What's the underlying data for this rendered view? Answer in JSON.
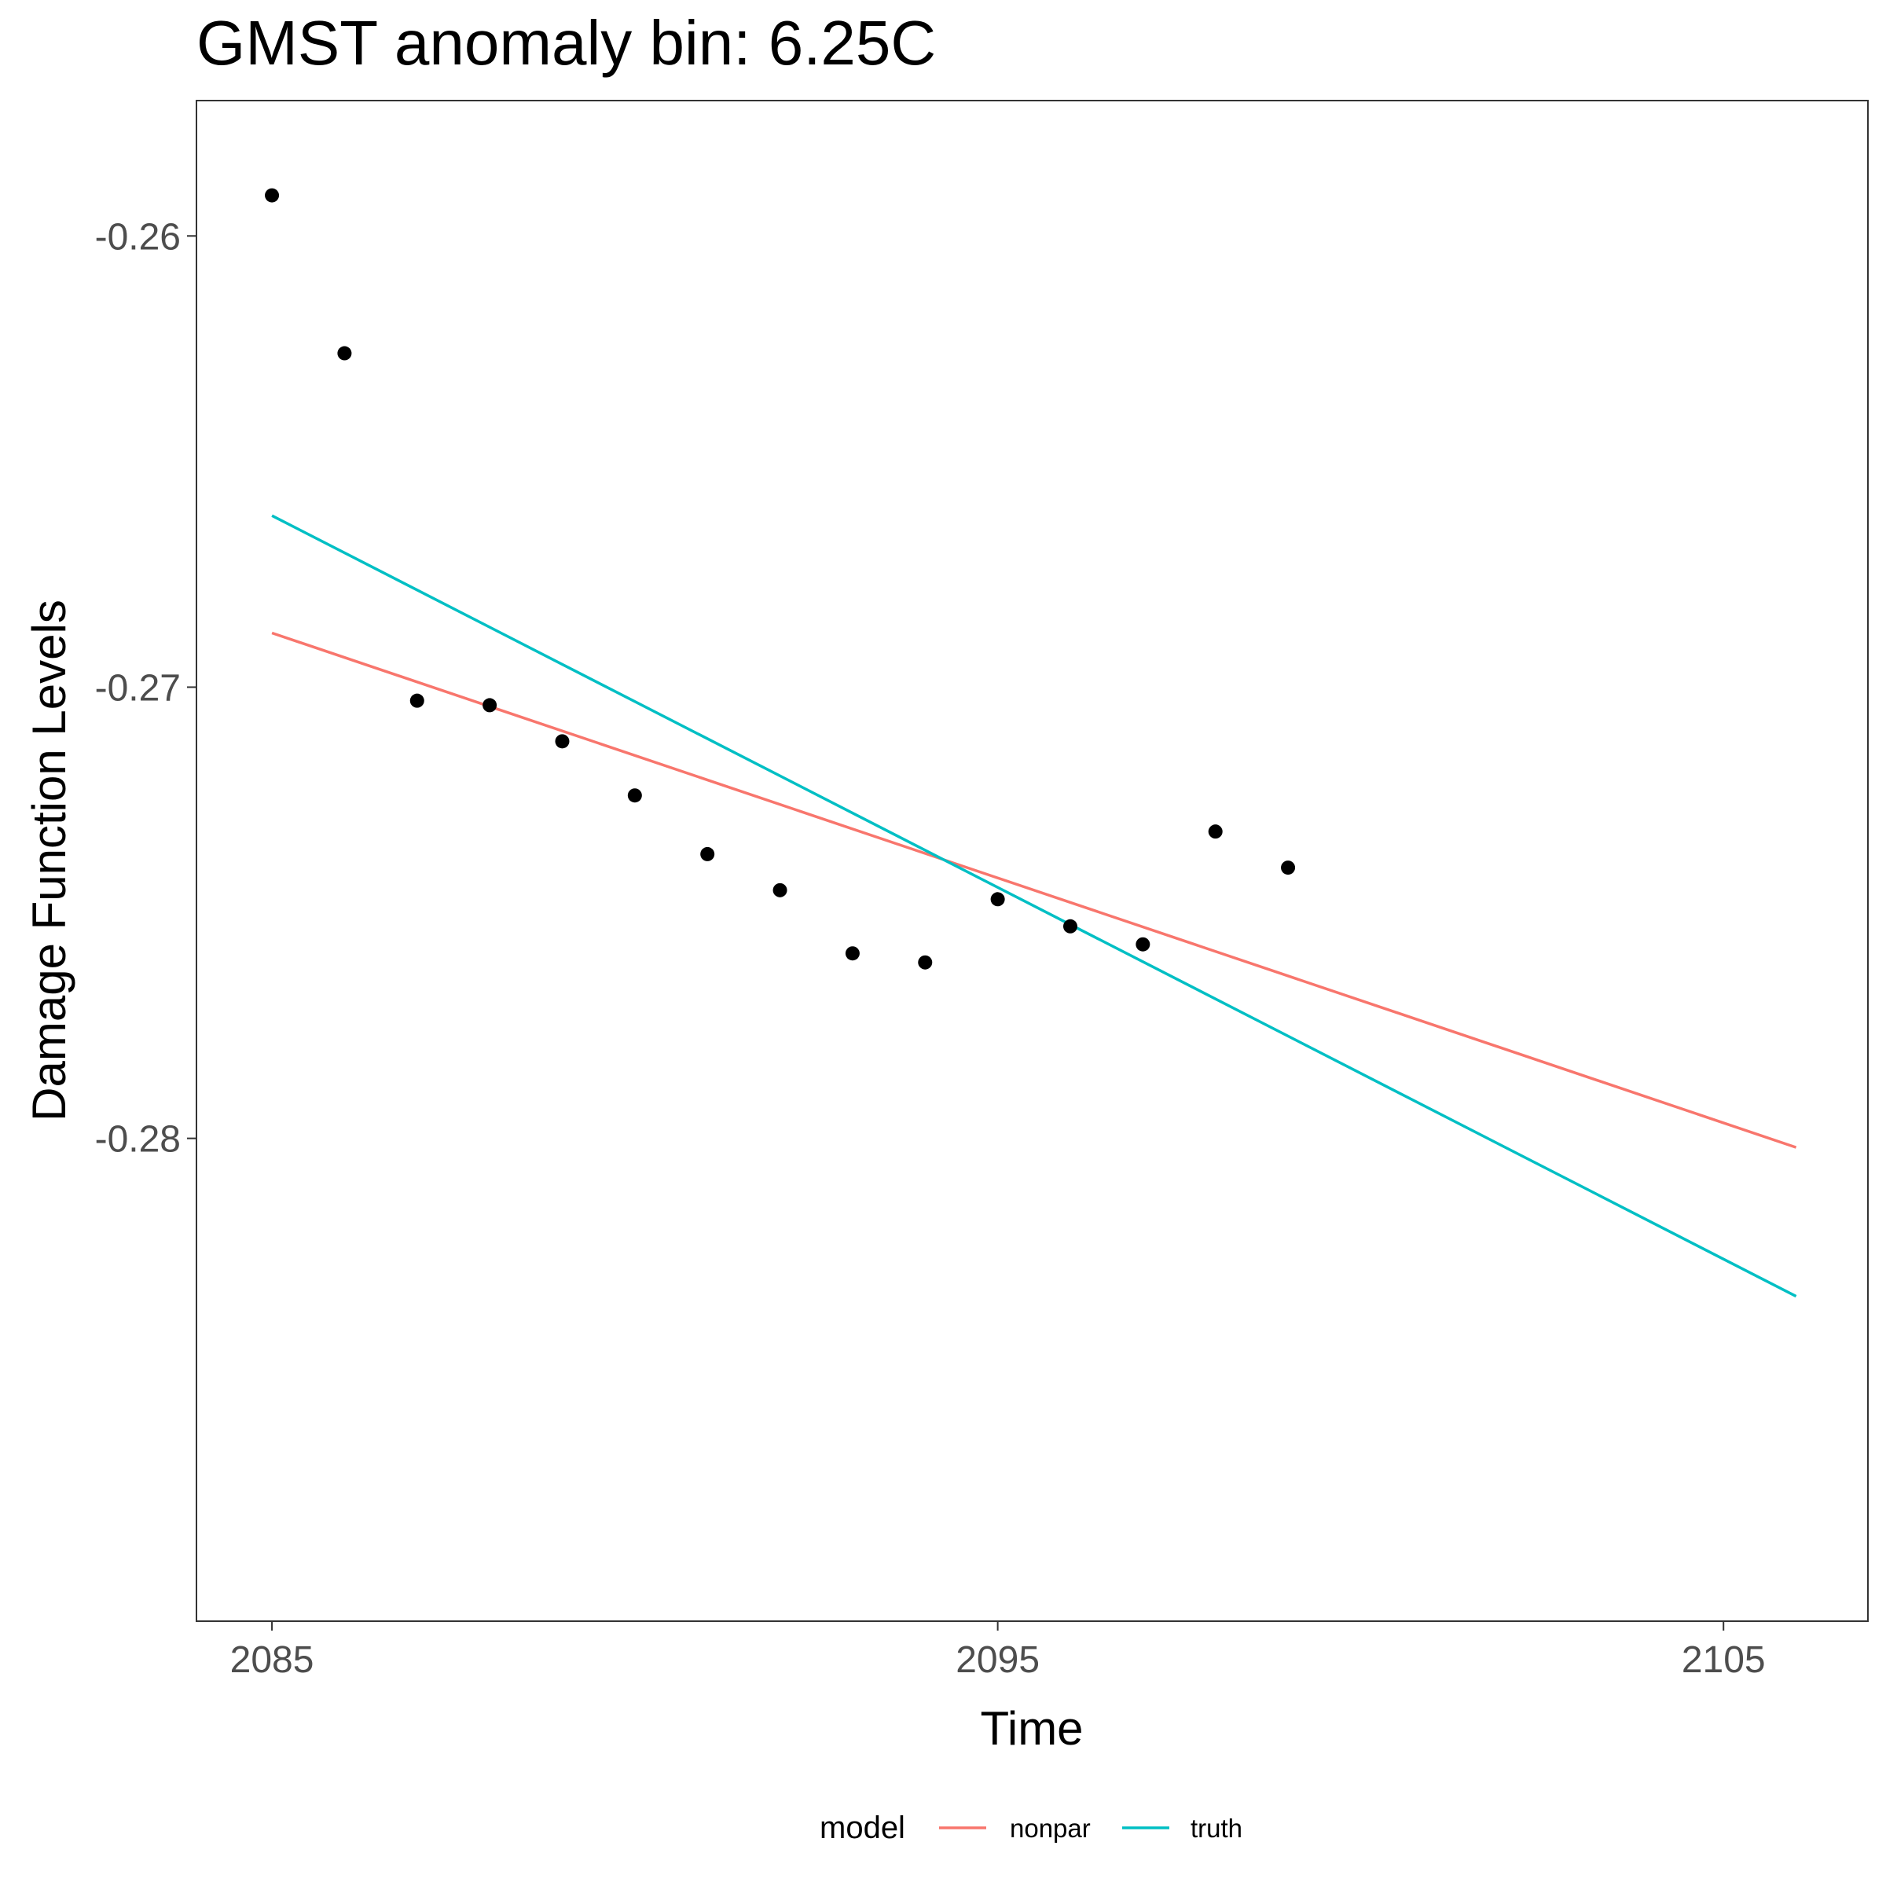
{
  "chart_data": {
    "type": "scatter",
    "title": "GMST anomaly bin: 6.25C",
    "xlabel": "Time",
    "ylabel": "Damage Function Levels",
    "xlim": [
      2083.96,
      2106.99
    ],
    "ylim": [
      -0.2907,
      -0.257
    ],
    "x_ticks": [
      2085,
      2095,
      2105
    ],
    "x_tick_labels": [
      "2085",
      "2095",
      "2105"
    ],
    "y_ticks": [
      -0.26,
      -0.27,
      -0.28
    ],
    "y_tick_labels": [
      "-0.26",
      "-0.27",
      "-0.28"
    ],
    "grid": false,
    "points": {
      "x": [
        2085,
        2086,
        2087,
        2088,
        2089,
        2090,
        2091,
        2092,
        2093,
        2094,
        2095,
        2096,
        2097,
        2098,
        2099
      ],
      "y": [
        -0.2591,
        -0.2626,
        -0.2703,
        -0.2704,
        -0.2712,
        -0.2724,
        -0.2737,
        -0.2745,
        -0.2759,
        -0.2761,
        -0.2747,
        -0.2753,
        -0.2757,
        -0.2732,
        -0.274
      ],
      "color": "#000000"
    },
    "series": [
      {
        "name": "nonpar",
        "color": "#F8766D",
        "x": [
          2085,
          2106
        ],
        "y": [
          -0.2688,
          -0.2802
        ]
      },
      {
        "name": "truth",
        "color": "#00BFC4",
        "x": [
          2085,
          2106
        ],
        "y": [
          -0.2662,
          -0.2835
        ]
      }
    ],
    "legend": {
      "title": "model",
      "position": "bottom",
      "items": [
        {
          "label": "nonpar",
          "color": "#F8766D"
        },
        {
          "label": "truth",
          "color": "#00BFC4"
        }
      ]
    }
  }
}
